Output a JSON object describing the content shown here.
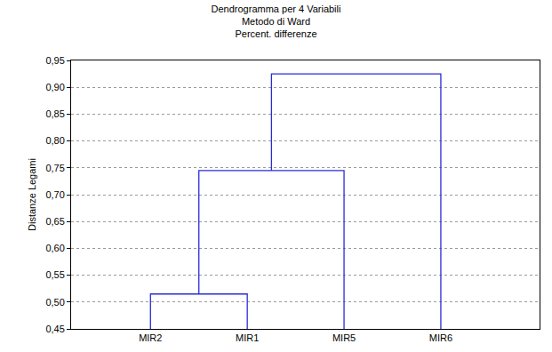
{
  "chart_data": {
    "type": "dendrogram",
    "title": "Dendrogramma per 4 Variabili",
    "subtitle": [
      "Metodo di Ward",
      "Percent. differenze"
    ],
    "y_label": "Distanze Legami",
    "categories": [
      "MIR2",
      "MIR1",
      "MIR5",
      "MIR6"
    ],
    "merges": [
      {
        "left": 0,
        "right": 1,
        "height": 0.515
      },
      {
        "left": 4,
        "right": 2,
        "height": 0.745
      },
      {
        "left": 5,
        "right": 3,
        "height": 0.925
      }
    ],
    "color": "#2b2bd6",
    "ylim": [
      0.45,
      0.95
    ],
    "yticks": [
      {
        "value": 0.45,
        "label": "0,45"
      },
      {
        "value": 0.5,
        "label": "0,50"
      },
      {
        "value": 0.55,
        "label": "0,55"
      },
      {
        "value": 0.6,
        "label": "0,60"
      },
      {
        "value": 0.65,
        "label": "0,65"
      },
      {
        "value": 0.7,
        "label": "0,70"
      },
      {
        "value": 0.75,
        "label": "0,75"
      },
      {
        "value": 0.8,
        "label": "0,80"
      },
      {
        "value": 0.85,
        "label": "0,85"
      },
      {
        "value": 0.9,
        "label": "0,90"
      },
      {
        "value": 0.95,
        "label": "0,95"
      }
    ],
    "grid": true
  }
}
